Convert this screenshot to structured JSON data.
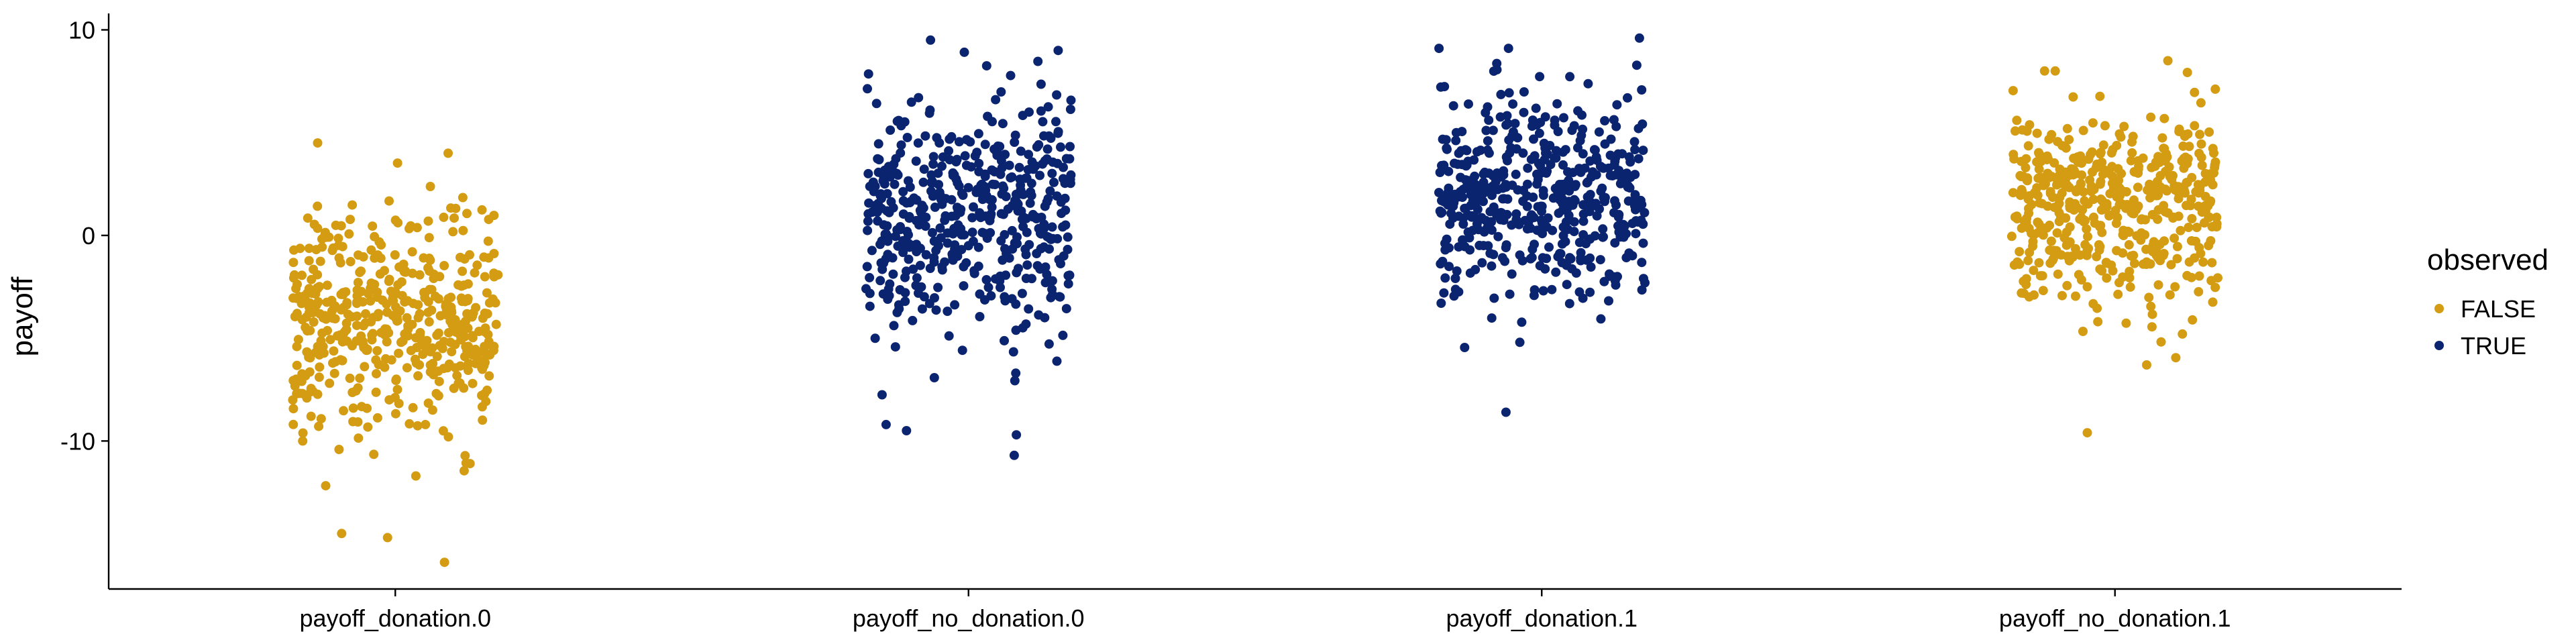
{
  "chart_data": {
    "type": "scatter",
    "subtype": "jitter-strip",
    "title": "",
    "xlabel": "",
    "ylabel": "payoff",
    "ylim": [
      -17.2,
      10.8
    ],
    "yticks": [
      10,
      0,
      -10
    ],
    "ytick_labels": [
      "10",
      "0",
      "-10"
    ],
    "categories": [
      "payoff_donation.0",
      "payoff_no_donation.0",
      "payoff_donation.1",
      "payoff_no_donation.1"
    ],
    "grid": false,
    "legend": {
      "title": "observed",
      "position": "right",
      "entries": [
        {
          "label": "FALSE",
          "color": "#D49C12"
        },
        {
          "label": "TRUE",
          "color": "#0B2470"
        }
      ]
    },
    "series": [
      {
        "category": "payoff_donation.0",
        "observed": "FALSE",
        "color": "#D49C12",
        "n_points": 500,
        "center": -4.0,
        "spread": 2.6,
        "range": [
          -15.9,
          4.5
        ],
        "notable_points": [
          -15.9,
          -14.5,
          -14.7,
          -11.7,
          -11.1,
          4.5
        ]
      },
      {
        "category": "payoff_no_donation.0",
        "observed": "TRUE",
        "color": "#0B2470",
        "n_points": 500,
        "center": 0.8,
        "spread": 3.0,
        "range": [
          -10.7,
          9.5
        ],
        "notable_points": [
          -10.7,
          -9.5,
          -9.7,
          -6.7,
          9.5
        ]
      },
      {
        "category": "payoff_donation.1",
        "observed": "TRUE",
        "color": "#0B2470",
        "n_points": 500,
        "center": 2.0,
        "spread": 2.5,
        "range": [
          -8.6,
          9.6
        ],
        "notable_points": [
          -8.6,
          -5.2,
          9.6
        ]
      },
      {
        "category": "payoff_no_donation.1",
        "observed": "FALSE",
        "color": "#D49C12",
        "n_points": 500,
        "center": 1.5,
        "spread": 2.4,
        "range": [
          -9.6,
          8.5
        ],
        "notable_points": [
          -9.6,
          -6.3,
          8.5
        ]
      }
    ]
  }
}
